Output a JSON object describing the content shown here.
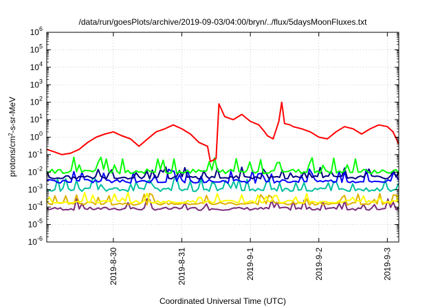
{
  "chart_data": {
    "type": "line",
    "title": "/data/run/goesPlots/archive/2019-09-03/04:00/bryn/../flux/5daysMoonFluxes.txt",
    "xlabel": "Coordinated Universal Time (UTC)",
    "ylabel_parts": {
      "before_sup": "protons/cm",
      "sup": "2",
      "after_sup": "-s-sr-MeV"
    },
    "yscale": "log",
    "ylim_exp": [
      -6,
      6
    ],
    "ytick_exponents": [
      -6,
      -5,
      -4,
      -3,
      -2,
      -1,
      0,
      1,
      2,
      3,
      4,
      5,
      6
    ],
    "ytick_base": "10",
    "xlim": [
      "2019-08-29T00:40",
      "2019-09-03T04:00"
    ],
    "xtick_labels": [
      "2019-8-30",
      "2019-8-31",
      "2019-9-1",
      "2019-9-2",
      "2019-9-3"
    ],
    "xtick_dates": [
      "2019-08-30",
      "2019-08-31",
      "2019-09-01",
      "2019-09-02",
      "2019-09-03"
    ],
    "grid": true,
    "series": [
      {
        "color": "#7a2a7a",
        "baseline": 8e-05,
        "spike_to": 0.0003
      },
      {
        "color": "#e0b000",
        "baseline": 0.00016,
        "spike_to": 0.0006
      },
      {
        "color": "#ffff00",
        "baseline": 0.0002,
        "spike_to": 0.0007
      },
      {
        "color": "#00c0a0",
        "baseline": 0.001,
        "spike_to": 0.005
      },
      {
        "color": "#0000ff",
        "baseline": 0.003,
        "spike_to": 0.015
      },
      {
        "color": "#000080",
        "baseline": 0.005,
        "spike_to": 0.02
      },
      {
        "color": "#00ff00",
        "baseline": 0.011,
        "spike_to": 0.08
      },
      {
        "color": "#ff0000",
        "x": [
          "2019-08-29T00:40",
          "2019-08-29T03:00",
          "2019-08-29T06:00",
          "2019-08-29T09:00",
          "2019-08-29T12:00",
          "2019-08-29T15:00",
          "2019-08-29T18:00",
          "2019-08-29T21:00",
          "2019-08-30T00:00",
          "2019-08-30T03:00",
          "2019-08-30T06:00",
          "2019-08-30T09:00",
          "2019-08-30T12:00",
          "2019-08-30T15:00",
          "2019-08-30T18:00",
          "2019-08-30T21:00",
          "2019-08-31T00:00",
          "2019-08-31T03:00",
          "2019-08-31T06:00",
          "2019-08-31T09:00",
          "2019-08-31T10:00",
          "2019-08-31T12:00",
          "2019-08-31T13:00",
          "2019-08-31T15:00",
          "2019-08-31T18:00",
          "2019-08-31T21:00",
          "2019-09-01T00:00",
          "2019-09-01T03:00",
          "2019-09-01T05:00",
          "2019-09-01T06:00",
          "2019-09-01T08:00",
          "2019-09-01T10:00",
          "2019-09-01T11:00",
          "2019-09-01T12:00",
          "2019-09-01T14:00",
          "2019-09-01T15:00",
          "2019-09-01T18:00",
          "2019-09-01T21:00",
          "2019-09-02T00:00",
          "2019-09-02T03:00",
          "2019-09-02T06:00",
          "2019-09-02T09:00",
          "2019-09-02T12:00",
          "2019-09-02T15:00",
          "2019-09-02T18:00",
          "2019-09-02T21:00",
          "2019-09-03T00:00",
          "2019-09-03T02:00",
          "2019-09-03T04:00"
        ],
        "y": [
          0.2,
          0.15,
          0.1,
          0.12,
          0.2,
          0.5,
          1,
          1.5,
          2,
          1.2,
          0.8,
          0.3,
          0.8,
          2,
          3,
          5,
          3,
          1.5,
          0.5,
          0.3,
          0.04,
          0.06,
          80,
          15,
          10,
          20,
          8,
          5,
          2,
          1.2,
          0.8,
          8,
          100,
          6,
          5,
          4,
          3,
          2,
          1,
          0.8,
          2,
          4,
          3,
          1.5,
          3,
          5,
          4,
          2,
          0.4
        ]
      }
    ]
  }
}
